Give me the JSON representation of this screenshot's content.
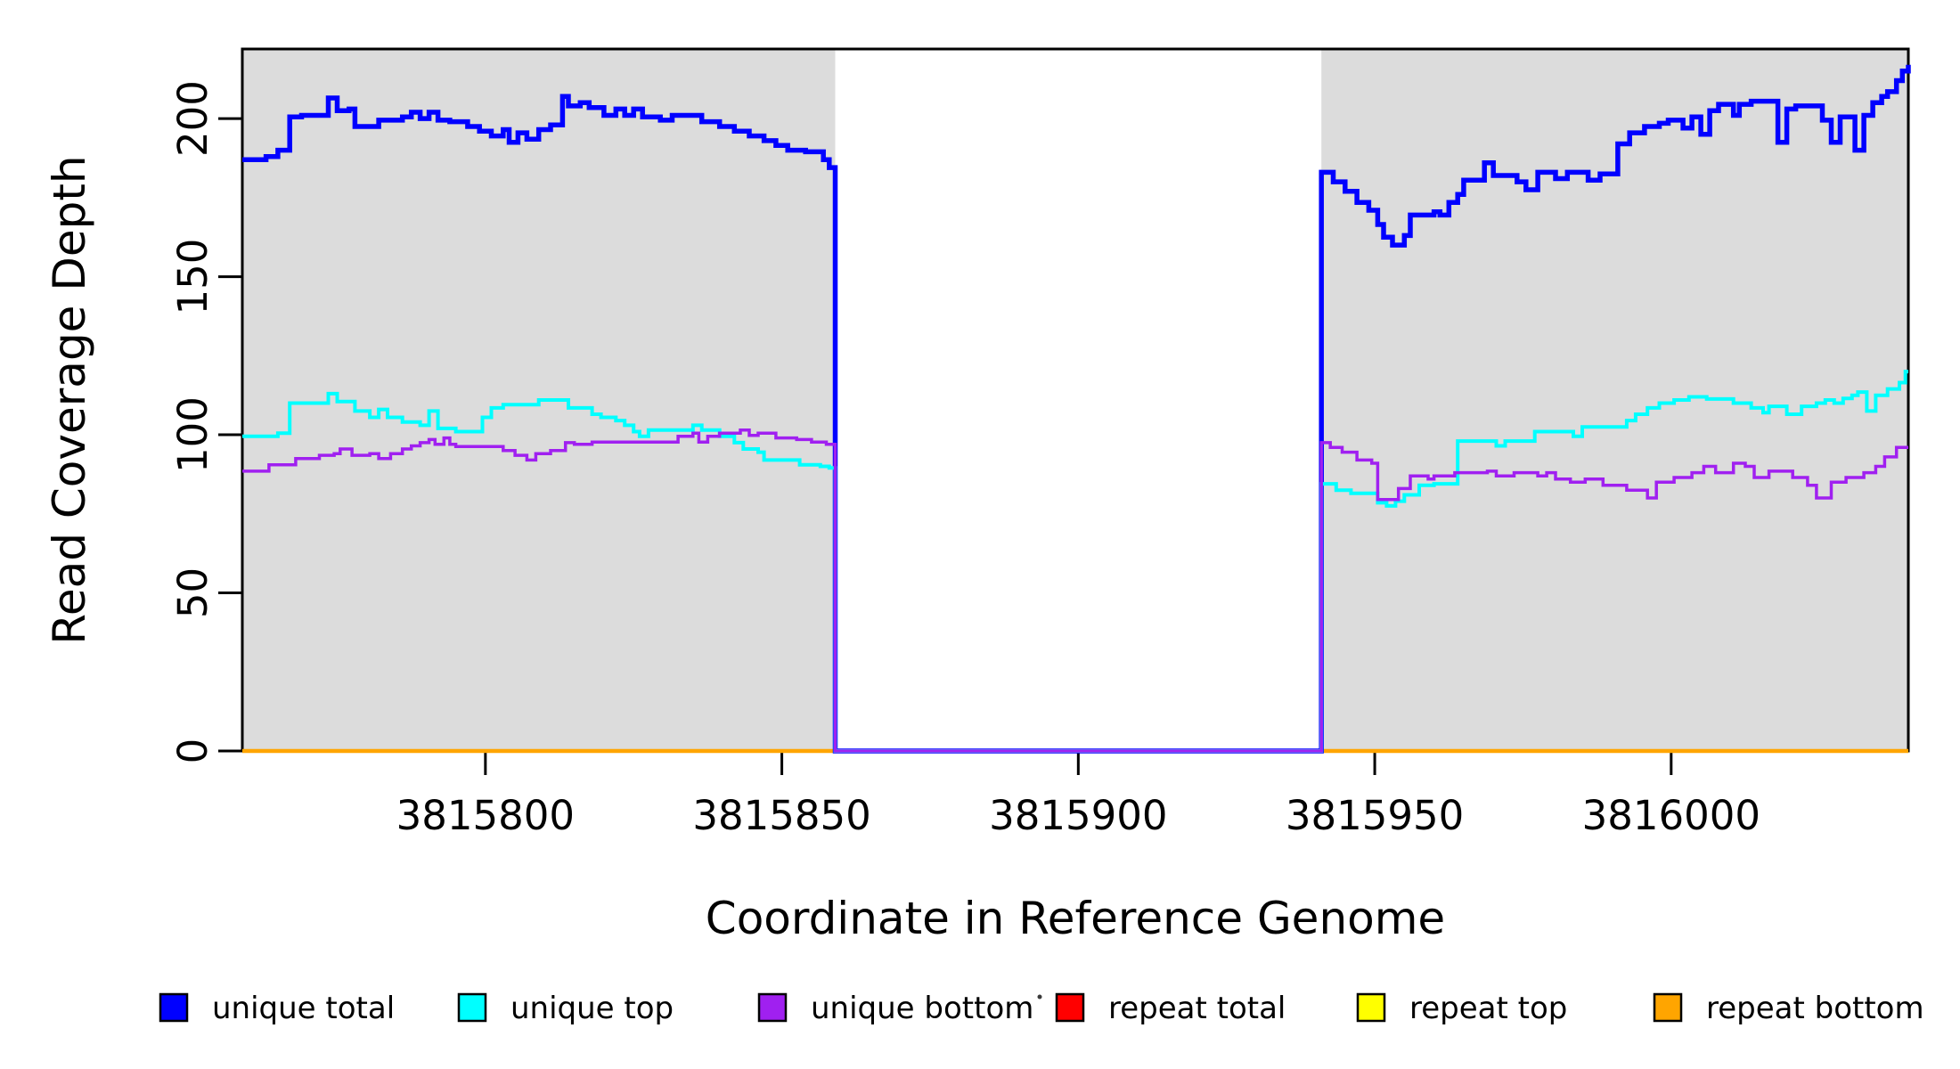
{
  "figure": {
    "background": "#ffffff",
    "description": "Read coverage depth step plot across a reference genome window with shaded mapped regions and a central zero-coverage gap"
  },
  "chart_data": {
    "type": "line",
    "step": true,
    "title": "",
    "xlabel": "Coordinate in Reference Genome",
    "ylabel": "Read Coverage Depth",
    "xlim": [
      3815759,
      3816040
    ],
    "ylim": [
      0,
      222
    ],
    "xticks": [
      3815800,
      3815850,
      3815900,
      3815950,
      3816000
    ],
    "yticks": [
      0,
      50,
      100,
      150,
      200
    ],
    "grid": false,
    "plot_background": "#ffffff",
    "shaded_regions": [
      {
        "x0": 3815759,
        "x1": 3815859,
        "color": "#dcdcdc"
      },
      {
        "x0": 3815941,
        "x1": 3816040,
        "color": "#dcdcdc"
      }
    ],
    "gap_region": {
      "x0": 3815859,
      "x1": 3815941,
      "note": "unique coverage drops to 0 between shaded regions"
    },
    "series": [
      {
        "name": "repeat total",
        "color": "#FF0000",
        "width": 3,
        "points": [
          [
            3815759,
            0
          ]
        ]
      },
      {
        "name": "repeat top",
        "color": "#FFFF00",
        "width": 3,
        "points": [
          [
            3815759,
            0
          ]
        ]
      },
      {
        "name": "repeat bottom",
        "color": "#FFA500",
        "width": 4.5,
        "points": [
          [
            3815759,
            0
          ]
        ]
      },
      {
        "name": "unique total",
        "color": "#0000FF",
        "width": 5.5,
        "points": [
          [
            3815759,
            187
          ],
          [
            3815763,
            188
          ],
          [
            3815765,
            190
          ],
          [
            3815767,
            200.5
          ],
          [
            3815769,
            201
          ],
          [
            3815773.5,
            206.5
          ],
          [
            3815775,
            202.5
          ],
          [
            3815777,
            203
          ],
          [
            3815778,
            197.5
          ],
          [
            3815782,
            199.5
          ],
          [
            3815786,
            200.5
          ],
          [
            3815787.5,
            202
          ],
          [
            3815789,
            200
          ],
          [
            3815790.5,
            202
          ],
          [
            3815792,
            199.5
          ],
          [
            3815794,
            199
          ],
          [
            3815797,
            197.5
          ],
          [
            3815799,
            196
          ],
          [
            3815801,
            194.5
          ],
          [
            3815803,
            196.5
          ],
          [
            3815804,
            192.5
          ],
          [
            3815805.5,
            195.5
          ],
          [
            3815807,
            193.5
          ],
          [
            3815809,
            196.5
          ],
          [
            3815811,
            198
          ],
          [
            3815813,
            207
          ],
          [
            3815814,
            204
          ],
          [
            3815816,
            205
          ],
          [
            3815817.5,
            203.5
          ],
          [
            3815820,
            201
          ],
          [
            3815822,
            203
          ],
          [
            3815823.5,
            201
          ],
          [
            3815825,
            203
          ],
          [
            3815826.5,
            200.5
          ],
          [
            3815829.5,
            199.5
          ],
          [
            3815831.5,
            201
          ],
          [
            3815836.5,
            199
          ],
          [
            3815839.5,
            197.5
          ],
          [
            3815842,
            196
          ],
          [
            3815844.5,
            194.5
          ],
          [
            3815847,
            193
          ],
          [
            3815849,
            191.5
          ],
          [
            3815851,
            190
          ],
          [
            3815854,
            189.5
          ],
          [
            3815857,
            187
          ],
          [
            3815858,
            184.5
          ],
          [
            3815859,
            0
          ],
          [
            3815941,
            183
          ],
          [
            3815943,
            180
          ],
          [
            3815945,
            177
          ],
          [
            3815947,
            173.5
          ],
          [
            3815949,
            171
          ],
          [
            3815950.5,
            166.5
          ],
          [
            3815951.5,
            162.5
          ],
          [
            3815953,
            160
          ],
          [
            3815955,
            163
          ],
          [
            3815956,
            169.5
          ],
          [
            3815960,
            170.5
          ],
          [
            3815961,
            169.5
          ],
          [
            3815962.5,
            173.5
          ],
          [
            3815964,
            176
          ],
          [
            3815965,
            180.5
          ],
          [
            3815968.5,
            186
          ],
          [
            3815970,
            182
          ],
          [
            3815974,
            180
          ],
          [
            3815975.5,
            177.5
          ],
          [
            3815977.5,
            183
          ],
          [
            3815980.5,
            181
          ],
          [
            3815982.5,
            183
          ],
          [
            3815986,
            180.5
          ],
          [
            3815988,
            182.5
          ],
          [
            3815991,
            192
          ],
          [
            3815993,
            195.5
          ],
          [
            3815995.5,
            197.5
          ],
          [
            3815998,
            198.5
          ],
          [
            3815999.5,
            199.5
          ],
          [
            3816002,
            197
          ],
          [
            3816003.5,
            200.5
          ],
          [
            3816005,
            195
          ],
          [
            3816006.5,
            202.5
          ],
          [
            3816008,
            204.5
          ],
          [
            3816010.5,
            201
          ],
          [
            3816011.5,
            204.5
          ],
          [
            3816013.5,
            205.5
          ],
          [
            3816018,
            192.5
          ],
          [
            3816019.5,
            203
          ],
          [
            3816021,
            204
          ],
          [
            3816025.5,
            199.5
          ],
          [
            3816027,
            192.5
          ],
          [
            3816028.5,
            200.5
          ],
          [
            3816031,
            190
          ],
          [
            3816032.5,
            201
          ],
          [
            3816034,
            205
          ],
          [
            3816035.5,
            207
          ],
          [
            3816036.5,
            208.5
          ],
          [
            3816038,
            212
          ],
          [
            3816039,
            215
          ],
          [
            3816040,
            217
          ]
        ]
      },
      {
        "name": "unique top",
        "color": "#00FFFF",
        "width": 4,
        "points": [
          [
            3815759,
            99.5
          ],
          [
            3815765,
            100.5
          ],
          [
            3815767,
            110
          ],
          [
            3815773.5,
            113
          ],
          [
            3815775,
            110.5
          ],
          [
            3815778,
            107.5
          ],
          [
            3815780.5,
            105.5
          ],
          [
            3815782,
            108
          ],
          [
            3815783.5,
            105.5
          ],
          [
            3815786,
            104
          ],
          [
            3815789,
            103
          ],
          [
            3815790.5,
            107.5
          ],
          [
            3815792,
            102
          ],
          [
            3815795,
            101
          ],
          [
            3815799.5,
            105.5
          ],
          [
            3815801,
            108.5
          ],
          [
            3815803,
            109.5
          ],
          [
            3815809,
            111
          ],
          [
            3815814,
            108.5
          ],
          [
            3815818,
            106.5
          ],
          [
            3815819.5,
            105.5
          ],
          [
            3815822,
            104.5
          ],
          [
            3815823.5,
            103
          ],
          [
            3815825,
            101
          ],
          [
            3815826,
            99.5
          ],
          [
            3815827.5,
            101.5
          ],
          [
            3815835,
            103
          ],
          [
            3815836.5,
            101.5
          ],
          [
            3815839.5,
            99.5
          ],
          [
            3815842,
            97.5
          ],
          [
            3815843.5,
            95.5
          ],
          [
            3815846,
            94.5
          ],
          [
            3815847,
            92
          ],
          [
            3815853,
            90.5
          ],
          [
            3815856.5,
            90
          ],
          [
            3815858,
            89.5
          ],
          [
            3815859,
            0
          ],
          [
            3815941,
            84.5
          ],
          [
            3815943.5,
            82.5
          ],
          [
            3815946,
            81.5
          ],
          [
            3815950.5,
            78.5
          ],
          [
            3815952,
            77.5
          ],
          [
            3815953.5,
            79
          ],
          [
            3815955,
            81
          ],
          [
            3815957.5,
            84
          ],
          [
            3815960,
            84.5
          ],
          [
            3815964,
            98
          ],
          [
            3815970.5,
            96.5
          ],
          [
            3815972,
            98
          ],
          [
            3815977,
            101
          ],
          [
            3815983.5,
            99.5
          ],
          [
            3815985,
            102.5
          ],
          [
            3815992.5,
            104.5
          ],
          [
            3815994,
            106.5
          ],
          [
            3815996,
            108.5
          ],
          [
            3815998,
            110
          ],
          [
            3816000.5,
            111
          ],
          [
            3816003,
            112
          ],
          [
            3816006,
            111.3
          ],
          [
            3816010.5,
            110
          ],
          [
            3816013.5,
            108.5
          ],
          [
            3816015.5,
            107
          ],
          [
            3816016.5,
            109
          ],
          [
            3816019.5,
            106.5
          ],
          [
            3816022,
            109
          ],
          [
            3816024.5,
            110
          ],
          [
            3816026,
            111
          ],
          [
            3816027.5,
            110
          ],
          [
            3816029,
            111.5
          ],
          [
            3816030.5,
            112.5
          ],
          [
            3816031.5,
            113.5
          ],
          [
            3816033,
            107.5
          ],
          [
            3816034.5,
            112.5
          ],
          [
            3816036.5,
            114.5
          ],
          [
            3816038.5,
            116.5
          ],
          [
            3816039.5,
            120
          ]
        ]
      },
      {
        "name": "unique bottom",
        "color": "#A020F0",
        "width": 3.5,
        "points": [
          [
            3815759,
            88.5
          ],
          [
            3815763.5,
            90.5
          ],
          [
            3815768,
            92.5
          ],
          [
            3815772,
            93.5
          ],
          [
            3815774.5,
            94
          ],
          [
            3815775.5,
            95.5
          ],
          [
            3815777.5,
            93.5
          ],
          [
            3815780.5,
            94
          ],
          [
            3815782,
            92.5
          ],
          [
            3815784,
            94
          ],
          [
            3815786,
            95.5
          ],
          [
            3815787.5,
            96.5
          ],
          [
            3815789,
            97.5
          ],
          [
            3815790.5,
            98.5
          ],
          [
            3815791.5,
            97
          ],
          [
            3815793,
            99
          ],
          [
            3815794,
            97
          ],
          [
            3815795,
            96.3
          ],
          [
            3815803,
            95
          ],
          [
            3815805,
            93.5
          ],
          [
            3815807,
            92
          ],
          [
            3815808.5,
            94
          ],
          [
            3815811,
            95
          ],
          [
            3815813.5,
            97.5
          ],
          [
            3815815,
            97
          ],
          [
            3815818,
            97.7
          ],
          [
            3815832.5,
            99.5
          ],
          [
            3815835,
            100.5
          ],
          [
            3815836,
            97.7
          ],
          [
            3815837.5,
            99.5
          ],
          [
            3815839.5,
            100.5
          ],
          [
            3815843,
            101.5
          ],
          [
            3815844.5,
            99.8
          ],
          [
            3815846,
            100.5
          ],
          [
            3815849,
            99
          ],
          [
            3815852.5,
            98.5
          ],
          [
            3815855,
            97.7
          ],
          [
            3815857.5,
            97
          ],
          [
            3815859,
            0
          ],
          [
            3815941,
            97.5
          ],
          [
            3815942.5,
            96
          ],
          [
            3815944.5,
            94.5
          ],
          [
            3815947,
            92
          ],
          [
            3815949.5,
            91
          ],
          [
            3815950.5,
            79.5
          ],
          [
            3815954,
            83
          ],
          [
            3815956,
            87
          ],
          [
            3815959,
            86
          ],
          [
            3815960,
            87
          ],
          [
            3815963.5,
            88
          ],
          [
            3815969,
            88.5
          ],
          [
            3815970.5,
            87
          ],
          [
            3815973.5,
            88
          ],
          [
            3815977.5,
            87
          ],
          [
            3815979,
            88
          ],
          [
            3815980.5,
            86
          ],
          [
            3815983,
            85
          ],
          [
            3815985.5,
            86
          ],
          [
            3815988.5,
            84
          ],
          [
            3815992.5,
            82.5
          ],
          [
            3815996,
            80
          ],
          [
            3815997.5,
            85
          ],
          [
            3816000.5,
            86.5
          ],
          [
            3816003.5,
            88
          ],
          [
            3816005.5,
            90
          ],
          [
            3816007.5,
            88
          ],
          [
            3816010.5,
            91
          ],
          [
            3816012.5,
            90
          ],
          [
            3816014,
            86.5
          ],
          [
            3816016.5,
            88.5
          ],
          [
            3816020.5,
            86.5
          ],
          [
            3816023,
            84
          ],
          [
            3816024.5,
            80
          ],
          [
            3816027,
            85
          ],
          [
            3816029.5,
            86.5
          ],
          [
            3816032.5,
            88
          ],
          [
            3816034.5,
            90
          ],
          [
            3816036,
            93
          ],
          [
            3816038,
            96
          ]
        ]
      }
    ],
    "legend": {
      "position": "bottom",
      "items": [
        {
          "label": "unique total",
          "color": "#0000FF"
        },
        {
          "label": "unique top",
          "color": "#00FFFF"
        },
        {
          "label": "unique bottom",
          "color": "#A020F0"
        },
        {
          "label": "repeat total",
          "color": "#FF0000"
        },
        {
          "label": "repeat top",
          "color": "#FFFF00"
        },
        {
          "label": "repeat bottom",
          "color": "#FFA500"
        }
      ]
    }
  }
}
